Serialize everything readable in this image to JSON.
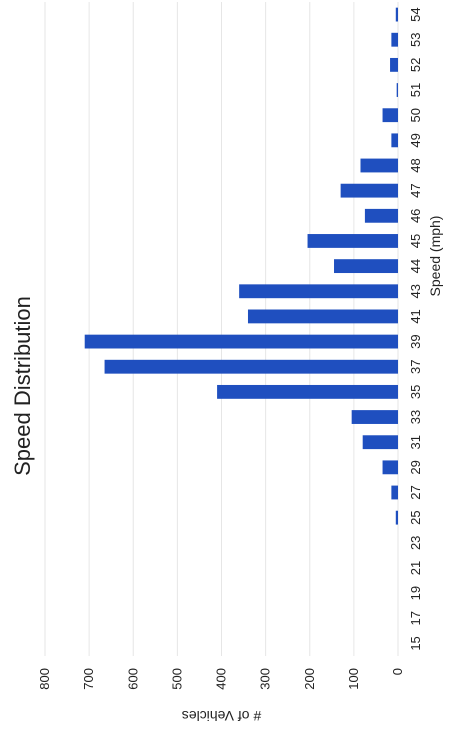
{
  "chart_data": {
    "type": "bar",
    "title": "Speed Distribution",
    "xlabel": "Speed (mph)",
    "ylabel": "# of Vehicles",
    "ylim": [
      0,
      800
    ],
    "yticks": [
      0,
      100,
      200,
      300,
      400,
      500,
      600,
      700,
      800
    ],
    "grid": true,
    "categories": [
      "15",
      "17",
      "19",
      "21",
      "23",
      "25",
      "27",
      "29",
      "31",
      "33",
      "35",
      "37",
      "39",
      "41",
      "43",
      "44",
      "45",
      "46",
      "47",
      "48",
      "49",
      "50",
      "51",
      "52",
      "53",
      "54"
    ],
    "values": [
      0,
      0,
      0,
      0,
      0,
      5,
      15,
      35,
      80,
      105,
      410,
      665,
      710,
      340,
      360,
      145,
      205,
      75,
      130,
      85,
      15,
      35,
      3,
      18,
      15,
      5
    ],
    "color": "#1f4fbf"
  }
}
